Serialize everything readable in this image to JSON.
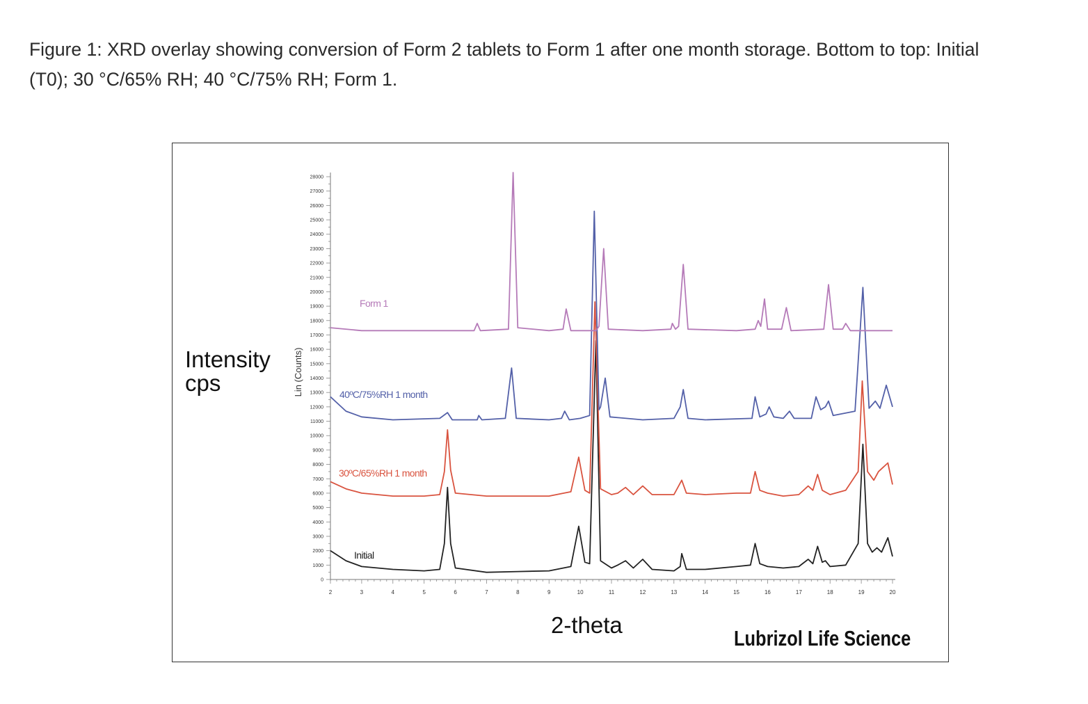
{
  "caption": "Figure 1: XRD overlay showing conversion of Form 2 tablets to Form 1 after one month storage. Bottom to top: Initial (T0); 30 °C/65% RH; 40 °C/75% RH; Form 1.",
  "outer_ylabel": "Intensity cps",
  "outer_xlabel": "2-theta",
  "brand": "Lubrizol Life Science",
  "chart_data": {
    "type": "line",
    "title": "",
    "xlabel": "2-theta",
    "ylabel": "Lin (Counts)",
    "xlim": [
      2,
      20
    ],
    "ylim": [
      0,
      28000
    ],
    "x_ticks": [
      2,
      3,
      4,
      5,
      6,
      7,
      8,
      9,
      10,
      11,
      12,
      13,
      14,
      15,
      16,
      17,
      18,
      19,
      20
    ],
    "y_ticks": [
      0,
      1000,
      2000,
      3000,
      4000,
      5000,
      6000,
      7000,
      8000,
      9000,
      10000,
      11000,
      12000,
      13000,
      14000,
      15000,
      16000,
      17000,
      18000,
      19000,
      20000,
      21000,
      22000,
      23000,
      24000,
      25000,
      26000,
      27000,
      28000
    ],
    "grid": false,
    "series": [
      {
        "name": "Initial",
        "color": "#222222",
        "points": [
          [
            2,
            2000
          ],
          [
            2.5,
            1300
          ],
          [
            3,
            900
          ],
          [
            4,
            700
          ],
          [
            5,
            600
          ],
          [
            5.5,
            700
          ],
          [
            5.65,
            2500
          ],
          [
            5.75,
            6400
          ],
          [
            5.85,
            2500
          ],
          [
            6,
            800
          ],
          [
            7,
            500
          ],
          [
            8,
            550
          ],
          [
            9,
            600
          ],
          [
            9.7,
            900
          ],
          [
            9.95,
            3700
          ],
          [
            10.15,
            1200
          ],
          [
            10.3,
            1100
          ],
          [
            10.5,
            16600
          ],
          [
            10.65,
            1300
          ],
          [
            11,
            800
          ],
          [
            11.2,
            1000
          ],
          [
            11.45,
            1300
          ],
          [
            11.7,
            800
          ],
          [
            12,
            1400
          ],
          [
            12.3,
            700
          ],
          [
            13,
            600
          ],
          [
            13.2,
            900
          ],
          [
            13.25,
            1800
          ],
          [
            13.4,
            700
          ],
          [
            14,
            700
          ],
          [
            15,
            900
          ],
          [
            15.45,
            1000
          ],
          [
            15.6,
            2500
          ],
          [
            15.75,
            1100
          ],
          [
            16,
            900
          ],
          [
            16.5,
            800
          ],
          [
            17,
            900
          ],
          [
            17.3,
            1400
          ],
          [
            17.45,
            1100
          ],
          [
            17.6,
            2300
          ],
          [
            17.75,
            1200
          ],
          [
            17.85,
            1300
          ],
          [
            18,
            900
          ],
          [
            18.5,
            1000
          ],
          [
            18.9,
            2500
          ],
          [
            19.05,
            9400
          ],
          [
            19.2,
            2500
          ],
          [
            19.35,
            1900
          ],
          [
            19.5,
            2200
          ],
          [
            19.65,
            1900
          ],
          [
            19.85,
            2900
          ],
          [
            20,
            1600
          ]
        ]
      },
      {
        "name": "30ºC/65%RH 1 month",
        "color": "#d9533f",
        "points": [
          [
            2,
            6800
          ],
          [
            2.5,
            6300
          ],
          [
            3,
            6000
          ],
          [
            4,
            5800
          ],
          [
            5,
            5800
          ],
          [
            5.5,
            5900
          ],
          [
            5.65,
            7500
          ],
          [
            5.75,
            10400
          ],
          [
            5.85,
            7600
          ],
          [
            6,
            6000
          ],
          [
            7,
            5800
          ],
          [
            8,
            5800
          ],
          [
            9,
            5800
          ],
          [
            9.7,
            6100
          ],
          [
            9.95,
            8500
          ],
          [
            10.15,
            6200
          ],
          [
            10.3,
            6000
          ],
          [
            10.47,
            19300
          ],
          [
            10.65,
            6300
          ],
          [
            11,
            5900
          ],
          [
            11.2,
            6000
          ],
          [
            11.45,
            6400
          ],
          [
            11.7,
            5900
          ],
          [
            12,
            6500
          ],
          [
            12.3,
            5900
          ],
          [
            13,
            5900
          ],
          [
            13.25,
            6900
          ],
          [
            13.4,
            6000
          ],
          [
            14,
            5900
          ],
          [
            15,
            6000
          ],
          [
            15.45,
            6000
          ],
          [
            15.6,
            7500
          ],
          [
            15.75,
            6200
          ],
          [
            16,
            6000
          ],
          [
            16.5,
            5800
          ],
          [
            17,
            5900
          ],
          [
            17.3,
            6500
          ],
          [
            17.45,
            6200
          ],
          [
            17.6,
            7300
          ],
          [
            17.75,
            6200
          ],
          [
            18,
            5900
          ],
          [
            18.5,
            6200
          ],
          [
            18.9,
            7500
          ],
          [
            19.03,
            13800
          ],
          [
            19.2,
            7500
          ],
          [
            19.4,
            6900
          ],
          [
            19.55,
            7500
          ],
          [
            19.85,
            8100
          ],
          [
            20,
            6600
          ]
        ]
      },
      {
        "name": "40ºC/75%RH 1 month",
        "color": "#5360a8",
        "points": [
          [
            2,
            12700
          ],
          [
            2.5,
            11700
          ],
          [
            3,
            11300
          ],
          [
            4,
            11100
          ],
          [
            5.5,
            11200
          ],
          [
            5.75,
            11600
          ],
          [
            5.9,
            11100
          ],
          [
            6.7,
            11100
          ],
          [
            6.75,
            11400
          ],
          [
            6.85,
            11100
          ],
          [
            7.6,
            11200
          ],
          [
            7.8,
            14700
          ],
          [
            7.95,
            11200
          ],
          [
            9,
            11100
          ],
          [
            9.4,
            11200
          ],
          [
            9.5,
            11700
          ],
          [
            9.65,
            11100
          ],
          [
            10,
            11200
          ],
          [
            10.3,
            11400
          ],
          [
            10.45,
            25600
          ],
          [
            10.6,
            11800
          ],
          [
            10.65,
            12000
          ],
          [
            10.8,
            14000
          ],
          [
            10.95,
            11300
          ],
          [
            12,
            11100
          ],
          [
            13,
            11200
          ],
          [
            13.2,
            12000
          ],
          [
            13.3,
            13200
          ],
          [
            13.45,
            11200
          ],
          [
            14,
            11100
          ],
          [
            15.5,
            11200
          ],
          [
            15.6,
            12700
          ],
          [
            15.75,
            11300
          ],
          [
            15.95,
            11500
          ],
          [
            16.05,
            12000
          ],
          [
            16.2,
            11300
          ],
          [
            16.5,
            11200
          ],
          [
            16.7,
            11700
          ],
          [
            16.85,
            11200
          ],
          [
            17.4,
            11200
          ],
          [
            17.55,
            12700
          ],
          [
            17.7,
            11800
          ],
          [
            17.85,
            12000
          ],
          [
            17.95,
            12400
          ],
          [
            18.1,
            11400
          ],
          [
            18.8,
            11700
          ],
          [
            19.05,
            20300
          ],
          [
            19.25,
            11900
          ],
          [
            19.45,
            12400
          ],
          [
            19.6,
            11900
          ],
          [
            19.8,
            13500
          ],
          [
            20,
            12000
          ]
        ]
      },
      {
        "name": "Form 1",
        "color": "#b57ab8",
        "points": [
          [
            2,
            17500
          ],
          [
            3,
            17300
          ],
          [
            6,
            17300
          ],
          [
            6.6,
            17300
          ],
          [
            6.7,
            17800
          ],
          [
            6.8,
            17300
          ],
          [
            7.7,
            17400
          ],
          [
            7.85,
            28300
          ],
          [
            8,
            17500
          ],
          [
            9,
            17300
          ],
          [
            9.45,
            17400
          ],
          [
            9.55,
            18800
          ],
          [
            9.7,
            17300
          ],
          [
            10.5,
            17300
          ],
          [
            10.6,
            17600
          ],
          [
            10.75,
            23000
          ],
          [
            10.9,
            17400
          ],
          [
            12,
            17300
          ],
          [
            12.9,
            17400
          ],
          [
            12.95,
            17800
          ],
          [
            13.05,
            17400
          ],
          [
            13.15,
            17600
          ],
          [
            13.3,
            21900
          ],
          [
            13.45,
            17400
          ],
          [
            15,
            17300
          ],
          [
            15.6,
            17400
          ],
          [
            15.7,
            18000
          ],
          [
            15.78,
            17600
          ],
          [
            15.9,
            19500
          ],
          [
            16,
            17400
          ],
          [
            16.45,
            17400
          ],
          [
            16.6,
            18900
          ],
          [
            16.75,
            17300
          ],
          [
            17.8,
            17400
          ],
          [
            17.95,
            20500
          ],
          [
            18.1,
            17400
          ],
          [
            18.4,
            17400
          ],
          [
            18.5,
            17800
          ],
          [
            18.65,
            17300
          ],
          [
            20,
            17300
          ]
        ]
      }
    ]
  }
}
